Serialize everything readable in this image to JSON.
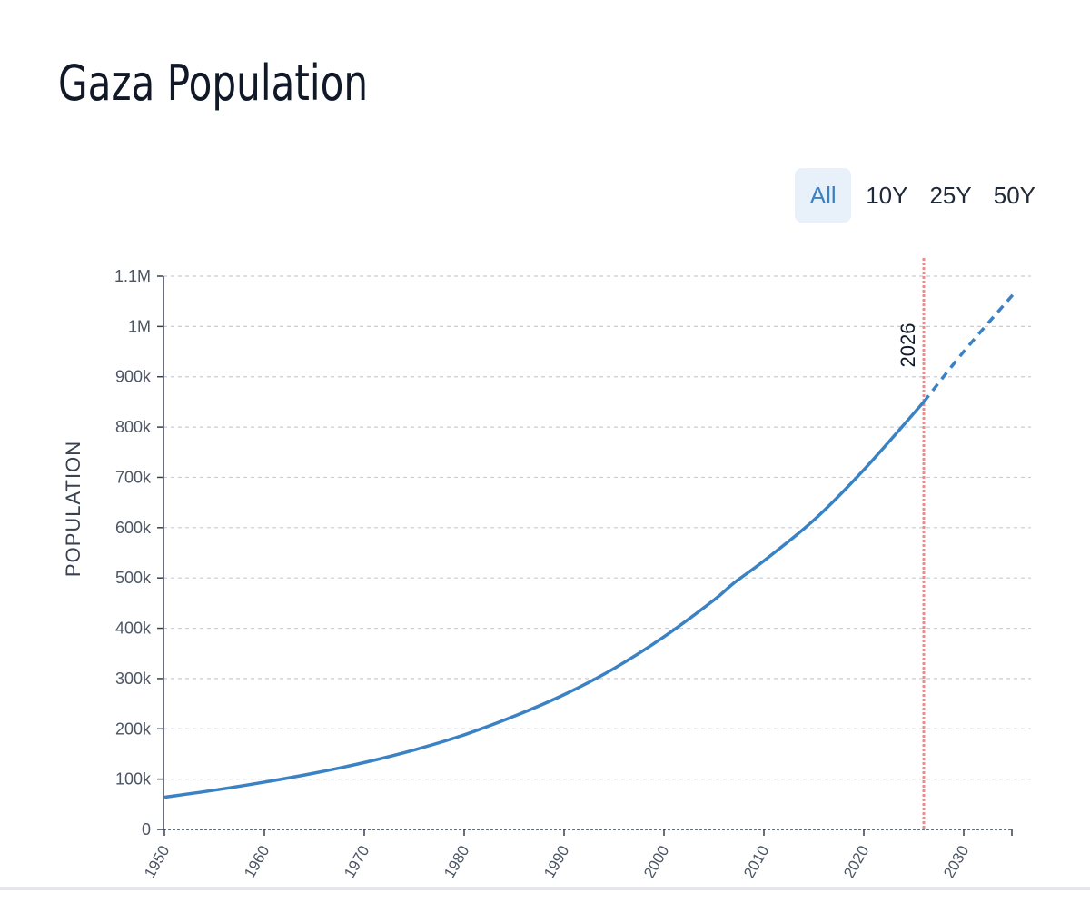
{
  "header": {
    "title": "Gaza Population"
  },
  "range_selector": {
    "buttons": [
      {
        "label": "All",
        "active": true
      },
      {
        "label": "10Y",
        "active": false
      },
      {
        "label": "25Y",
        "active": false
      },
      {
        "label": "50Y",
        "active": false
      }
    ]
  },
  "colors": {
    "line": "#3b82c4",
    "marker": "#f08a8a",
    "grid": "#c9cdd3",
    "axis": "#374151",
    "tick_text": "#4b5563",
    "active_button_bg": "#e8f0f9"
  },
  "chart_data": {
    "type": "line",
    "title": "",
    "xlabel": "",
    "ylabel": "POPULATION",
    "xlim": [
      1950,
      2035
    ],
    "ylim": [
      0,
      1100000
    ],
    "x_ticks": [
      1950,
      1960,
      1970,
      1980,
      1990,
      2000,
      2010,
      2020,
      2030
    ],
    "y_ticks": [
      {
        "value": 0,
        "label": "0"
      },
      {
        "value": 100000,
        "label": "100k"
      },
      {
        "value": 200000,
        "label": "200k"
      },
      {
        "value": 300000,
        "label": "300k"
      },
      {
        "value": 400000,
        "label": "400k"
      },
      {
        "value": 500000,
        "label": "500k"
      },
      {
        "value": 600000,
        "label": "600k"
      },
      {
        "value": 700000,
        "label": "700k"
      },
      {
        "value": 800000,
        "label": "800k"
      },
      {
        "value": 900000,
        "label": "900k"
      },
      {
        "value": 1000000,
        "label": "1M"
      },
      {
        "value": 1100000,
        "label": "1.1M"
      }
    ],
    "grid": true,
    "marker": {
      "x": 2026,
      "label": "2026"
    },
    "series": [
      {
        "style": "solid",
        "points": [
          [
            1950,
            64000
          ],
          [
            1955,
            78000
          ],
          [
            1960,
            94000
          ],
          [
            1965,
            112000
          ],
          [
            1970,
            133000
          ],
          [
            1975,
            158000
          ],
          [
            1980,
            188000
          ],
          [
            1985,
            225000
          ],
          [
            1990,
            268000
          ],
          [
            1995,
            320000
          ],
          [
            2000,
            383000
          ],
          [
            2005,
            456000
          ],
          [
            2007,
            490000
          ],
          [
            2010,
            534000
          ],
          [
            2015,
            615000
          ],
          [
            2020,
            715000
          ],
          [
            2026,
            850000
          ]
        ]
      },
      {
        "style": "dashed",
        "points": [
          [
            2026,
            850000
          ],
          [
            2030,
            950000
          ],
          [
            2035,
            1065000
          ]
        ]
      }
    ]
  }
}
